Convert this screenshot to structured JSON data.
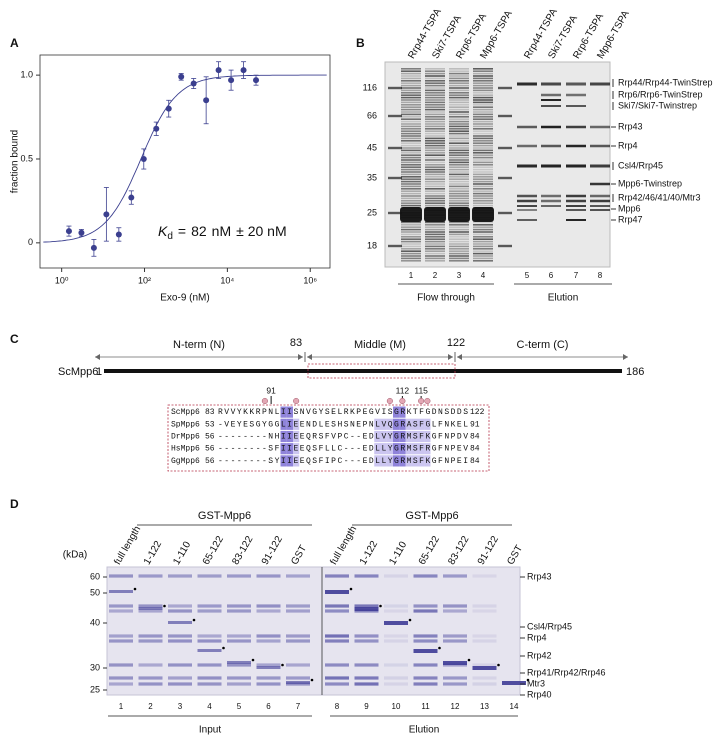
{
  "chart_data": {
    "type": "scatter",
    "panel_label": "A",
    "x_label": "Exo-9 (nM)",
    "y_label": "fraction bound",
    "x": [
      1.5,
      3,
      6,
      12,
      24,
      48,
      96,
      192,
      384,
      768,
      1536,
      3072,
      6144,
      12288,
      24576,
      49152
    ],
    "values": [
      0.07,
      0.06,
      -0.03,
      0.17,
      0.05,
      0.27,
      0.5,
      0.68,
      0.8,
      0.99,
      0.95,
      0.85,
      1.03,
      0.97,
      1.03,
      0.97
    ],
    "errors": [
      0.03,
      0.02,
      0.05,
      0.16,
      0.04,
      0.04,
      0.06,
      0.04,
      0.05,
      0.02,
      0.03,
      0.14,
      0.05,
      0.06,
      0.05,
      0.03
    ],
    "color": "#3b3f8f",
    "log_x": true,
    "xlim": [
      0.3,
      3000000
    ],
    "ylim": [
      -0.15,
      1.12
    ],
    "xticks": [
      {
        "value": 1,
        "label": "10⁰"
      },
      {
        "value": 100,
        "label": "10²"
      },
      {
        "value": 10000,
        "label": "10⁴"
      },
      {
        "value": 1000000,
        "label": "10⁶"
      }
    ],
    "yticks": [
      0,
      0.5,
      {
        "value": 1,
        "label": "1.0"
      }
    ],
    "fit": {
      "symbol": "K",
      "subscript": "d",
      "equals": "=",
      "value": 82,
      "unit": "nM",
      "error": "± 20 nM"
    }
  },
  "panel_b": {
    "label": "B",
    "lanes": [
      "Rrp44-TSPA",
      "Ski7-TSPA",
      "Rrp6-TSPA",
      "Mpp6-TSPA",
      "Rrp44-TSPA",
      "Ski7-TSPA",
      "Rrp6-TSPA",
      "Mpp6-TSPA"
    ],
    "markers": [
      "116",
      "66",
      "45",
      "35",
      "25",
      "18"
    ],
    "lane_numbers": [
      "1",
      "2",
      "3",
      "4",
      "5",
      "6",
      "7",
      "8"
    ],
    "groups": [
      "Flow through",
      "Elution"
    ],
    "proteins": [
      "Rrp44/Rrp44-TwinStrep",
      "Rrp6/Rrp6-TwinStrep",
      "Ski7/Ski7-Twinstrep",
      "Rrp43",
      "Rrp4",
      "Csl4/Rrp45",
      "Mpp6-Twinstrep",
      "Rrp42/46/41/40/Mtr3",
      "Mpp6",
      "Rrp47"
    ]
  },
  "panel_c": {
    "label": "C",
    "domains": [
      "N-term (N)",
      "Middle (M)",
      "C-term (C)"
    ],
    "boundaries": [
      "83",
      "122"
    ],
    "protein": "ScMpp6",
    "start": "1",
    "end": "186",
    "residue_marks": [
      91,
      112,
      115
    ],
    "alignment": [
      {
        "name": "ScMpp6",
        "start": 83,
        "sequence": "RVVYKKRPNLIISNVGYSELRKPEGVISGRKTFGDNSDDS",
        "end": 122
      },
      {
        "name": "SpMpp6",
        "start": 53,
        "sequence": "-VEYESGYGGLIEENDLESHSNEPNLVQGRASFGLFNKEL",
        "end": 91
      },
      {
        "name": "DrMpp6",
        "start": 56,
        "sequence": "--------NHIIEEQRSFVPC--EDLVYGRMSFKGFNPDV",
        "end": 84
      },
      {
        "name": "HsMpp6",
        "start": 56,
        "sequence": "--------SFIIEEQSFLLC---EDLLYGRMSFRGFNPEV",
        "end": 84
      },
      {
        "name": "GgMpp6",
        "start": 56,
        "sequence": "--------SYIIEEQSFIPC---EDLLYGRMSFKGFNPEI",
        "end": 84
      }
    ]
  },
  "panel_d": {
    "label": "D",
    "construct": [
      "GST-Mpp6",
      "GST-Mpp6"
    ],
    "unit": "(kDa)",
    "lanes": [
      "full length",
      "1-122",
      "1-110",
      "65-122",
      "83-122",
      "91-122",
      "GST",
      "full length",
      "1-122",
      "1-110",
      "65-122",
      "83-122",
      "91-122",
      "GST"
    ],
    "markers": [
      "60",
      "50",
      "40",
      "30",
      "25"
    ],
    "lane_numbers": [
      "1",
      "2",
      "3",
      "4",
      "5",
      "6",
      "7",
      "8",
      "9",
      "10",
      "11",
      "12",
      "13",
      "14"
    ],
    "groups": [
      "Input",
      "Elution"
    ],
    "proteins": [
      "Rrp43",
      "Csl4/Rrp45",
      "Rrp4",
      "Rrp42",
      "Rrp41/Rrp42/Rrp46",
      "Mtr3",
      "Rrp40"
    ]
  }
}
